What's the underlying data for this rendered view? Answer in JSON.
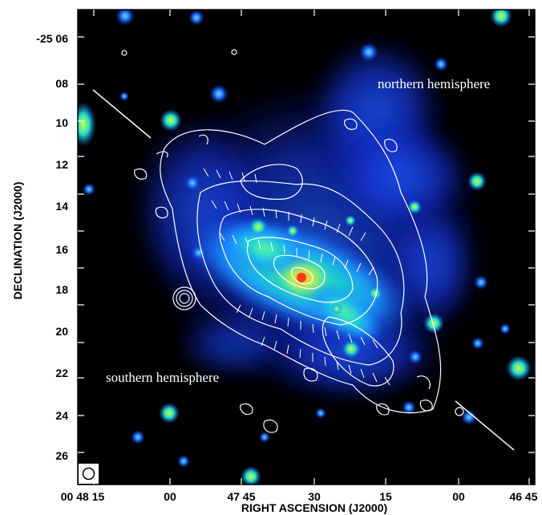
{
  "axes": {
    "xlabel": "RIGHT ASCENSION (J2000)",
    "ylabel": "DECLINATION (J2000)",
    "y_ticks": [
      "-25 06",
      "08",
      "10",
      "12",
      "14",
      "16",
      "18",
      "20",
      "22",
      "24",
      "26"
    ],
    "x_ticks": [
      "00 48 15",
      "00",
      "47 45",
      "30",
      "15",
      "00",
      "46 45"
    ]
  },
  "annotations": {
    "north": "northern hemisphere",
    "south": "southern hemisphere"
  },
  "colors": {
    "background": "#000000",
    "contours": "#ffffff",
    "frame": "#000000"
  },
  "icons": {
    "beam": "beam-ellipse-icon"
  }
}
